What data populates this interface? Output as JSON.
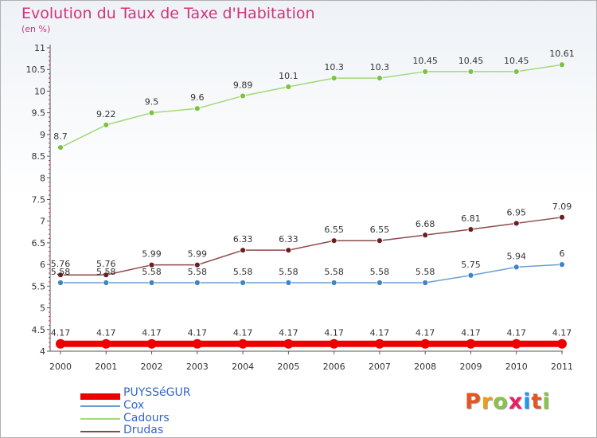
{
  "header": {
    "title": "Evolution du Taux de Taxe d'Habitation",
    "subtitle": "(en %)"
  },
  "logo": {
    "text": "Proxiti",
    "colors": [
      "#e8541e",
      "#f39c12",
      "#8bc34a",
      "#e91e63",
      "#2196f3",
      "#e8541e",
      "#8bc34a"
    ]
  },
  "chart_data": {
    "type": "line",
    "x": [
      "2000",
      "2001",
      "2002",
      "2003",
      "2004",
      "2005",
      "2006",
      "2007",
      "2008",
      "2009",
      "2010",
      "2011"
    ],
    "ylim": [
      4,
      11
    ],
    "yticks": [
      "4",
      "4.5",
      "5",
      "5.5",
      "6",
      "6.5",
      "7",
      "7.5",
      "8",
      "8.5",
      "9",
      "9.5",
      "10",
      "10.5",
      "11"
    ],
    "grid": false,
    "legend_position": "bottom-left",
    "series": [
      {
        "name": "PUYSSéGUR",
        "color": "#ee0000",
        "marker": "#ee0000",
        "width": 8,
        "values": [
          4.17,
          4.17,
          4.17,
          4.17,
          4.17,
          4.17,
          4.17,
          4.17,
          4.17,
          4.17,
          4.17,
          4.17
        ],
        "labels": [
          "4.17",
          "4.17",
          "4.17",
          "4.17",
          "4.17",
          "4.17",
          "4.17",
          "4.17",
          "4.17",
          "4.17",
          "4.17",
          "4.17"
        ]
      },
      {
        "name": "Cox",
        "color": "#6a9fd4",
        "marker": "#3d85c6",
        "width": 1.5,
        "values": [
          5.58,
          5.58,
          5.58,
          5.58,
          5.58,
          5.58,
          5.58,
          5.58,
          5.58,
          5.75,
          5.94,
          6
        ],
        "labels": [
          "5.58",
          "5.58",
          "5.58",
          "5.58",
          "5.58",
          "5.58",
          "5.58",
          "5.58",
          "5.58",
          "5.75",
          "5.94",
          "6"
        ]
      },
      {
        "name": "Cadours",
        "color": "#a3d977",
        "marker": "#7cc242",
        "width": 1.5,
        "values": [
          8.7,
          9.22,
          9.5,
          9.6,
          9.89,
          10.1,
          10.3,
          10.3,
          10.45,
          10.45,
          10.45,
          10.61
        ],
        "labels": [
          "8.7",
          "9.22",
          "9.5",
          "9.6",
          "9.89",
          "10.1",
          "10.3",
          "10.3",
          "10.45",
          "10.45",
          "10.45",
          "10.61"
        ]
      },
      {
        "name": "Drudas",
        "color": "#8b4a4a",
        "marker": "#6b1f1f",
        "width": 1.5,
        "values": [
          5.76,
          5.76,
          5.99,
          5.99,
          6.33,
          6.33,
          6.55,
          6.55,
          6.68,
          6.81,
          6.95,
          7.09
        ],
        "labels": [
          "5.76",
          "5.76",
          "5.99",
          "5.99",
          "6.33",
          "6.33",
          "6.55",
          "6.55",
          "6.68",
          "6.81",
          "6.95",
          "7.09"
        ]
      }
    ]
  }
}
